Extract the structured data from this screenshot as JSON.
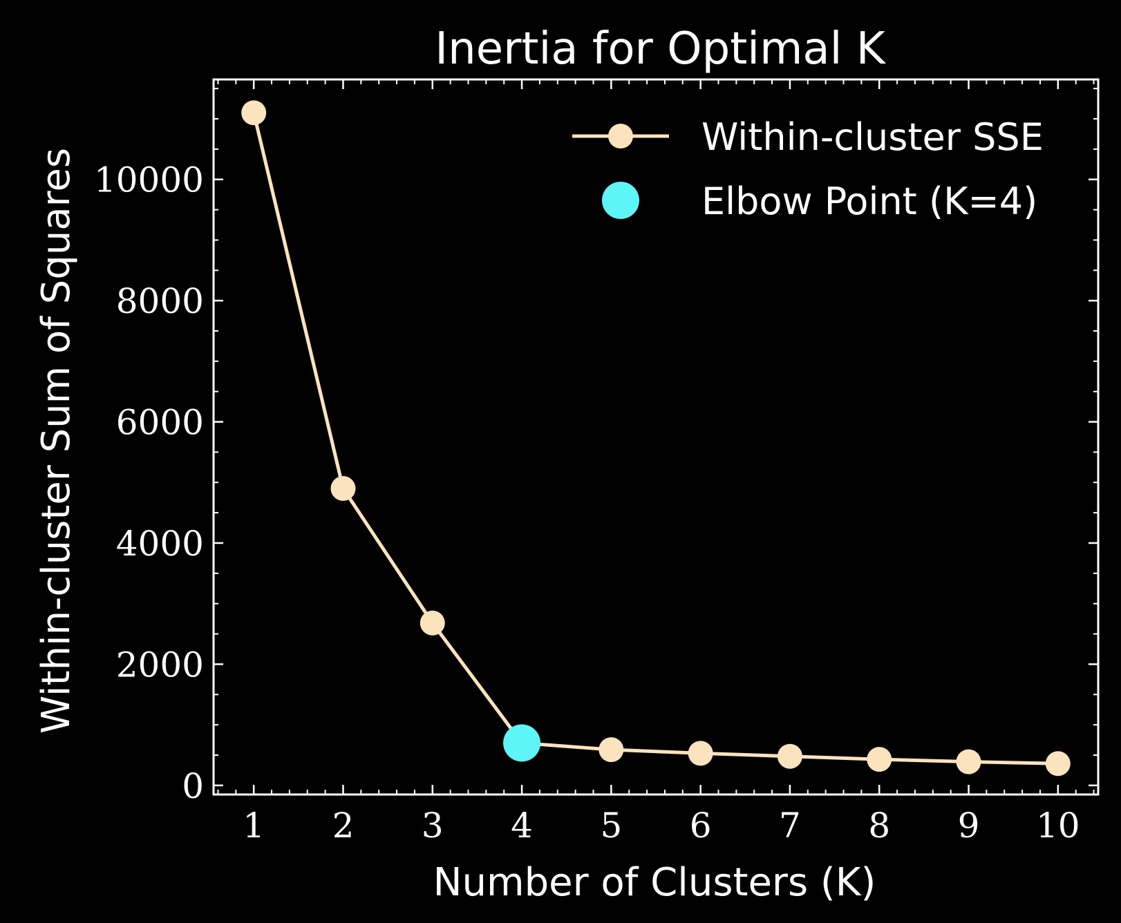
{
  "chart_data": {
    "type": "line",
    "title": "Inertia for Optimal K",
    "xlabel": "Number of Clusters (K)",
    "ylabel": "Within-cluster Sum of Squares",
    "x": [
      1,
      2,
      3,
      4,
      5,
      6,
      7,
      8,
      9,
      10
    ],
    "series": [
      {
        "name": "Within-cluster SSE",
        "values": [
          11100,
          4900,
          2680,
          700,
          590,
          530,
          480,
          430,
          390,
          360
        ],
        "color": "#fbe3bd"
      }
    ],
    "highlight": {
      "name": "Elbow Point (K=4)",
      "x": 4,
      "y": 700,
      "color": "#5ef5f7"
    },
    "xlim": [
      0.55,
      10.45
    ],
    "ylim": [
      -150,
      11650
    ],
    "xticks": [
      "1",
      "2",
      "3",
      "4",
      "5",
      "6",
      "7",
      "8",
      "9",
      "10"
    ],
    "yticks": [
      "0",
      "2000",
      "4000",
      "6000",
      "8000",
      "10000"
    ],
    "grid": false,
    "legend": "top-right",
    "background": "#000000",
    "axis_color": "#ffffff"
  }
}
